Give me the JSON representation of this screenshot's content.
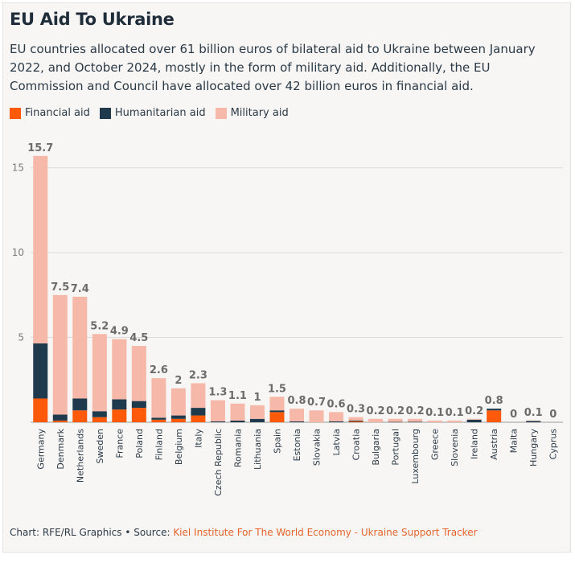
{
  "header": {
    "title": "EU Aid To Ukraine",
    "subtitle": "EU countries allocated over 61 billion euros of bilateral aid to Ukraine between January 2022, and October 2024, mostly in the form of military aid. Additionally, the EU Commission and Council have allocated over 42 billion euros in financial aid."
  },
  "legend": {
    "financial": "Financial aid",
    "humanitarian": "Humanitarian aid",
    "military": "Military aid"
  },
  "colors": {
    "financial": "#ff5a0a",
    "humanitarian": "#1e3a4c",
    "military": "#f6b8a8",
    "total_label": "#6b6b6b"
  },
  "footer": {
    "credit": "Chart: RFE/RL Graphics • Source: ",
    "source": "Kiel Institute For The World Economy - Ukraine Support Tracker"
  },
  "chart_data": {
    "type": "bar",
    "stacked": true,
    "ylim": [
      0,
      16.5
    ],
    "yticks": [
      5,
      10,
      15
    ],
    "grid": true,
    "legend_position": "top-left",
    "categories": [
      "Germany",
      "Denmark",
      "Netherlands",
      "Sweden",
      "France",
      "Poland",
      "Finland",
      "Belgium",
      "Italy",
      "Czech Republic",
      "Romania",
      "Lithuania",
      "Spain",
      "Estonia",
      "Slovakia",
      "Latvia",
      "Croatia",
      "Bulgaria",
      "Portugal",
      "Luxembourg",
      "Greece",
      "Slovenia",
      "Ireland",
      "Austria",
      "Malta",
      "Hungary",
      "Cyprus"
    ],
    "totals": [
      "15.7",
      "7.5",
      "7.4",
      "5.2",
      "4.9",
      "4.5",
      "2.6",
      "2",
      "2.3",
      "1.3",
      "1.1",
      "1",
      "1.5",
      "0.8",
      "0.7",
      "0.6",
      "0.3",
      "0.2",
      "0.2",
      "0.2",
      "0.1",
      "0.1",
      "0.2",
      "0.8",
      "0",
      "0.1",
      "0"
    ],
    "series": [
      {
        "name": "Financial aid",
        "key": "financial",
        "values": [
          1.4,
          0.1,
          0.7,
          0.3,
          0.75,
          0.85,
          0.15,
          0.2,
          0.4,
          0.0,
          0.0,
          0.0,
          0.6,
          0.0,
          0.0,
          0.0,
          0.05,
          0.0,
          0.0,
          0.0,
          0.0,
          0.0,
          0.0,
          0.7,
          0.0,
          0.0,
          0.0
        ]
      },
      {
        "name": "Humanitarian aid",
        "key": "humanitarian",
        "values": [
          3.25,
          0.35,
          0.7,
          0.35,
          0.6,
          0.4,
          0.12,
          0.2,
          0.45,
          0.05,
          0.1,
          0.2,
          0.1,
          0.05,
          0.0,
          0.05,
          0.05,
          0.0,
          0.02,
          0.03,
          0.0,
          0.0,
          0.15,
          0.1,
          0.0,
          0.08,
          0.0
        ]
      },
      {
        "name": "Military aid",
        "key": "military",
        "values": [
          11.05,
          7.05,
          6.0,
          4.55,
          3.55,
          3.25,
          2.33,
          1.6,
          1.45,
          1.25,
          1.0,
          0.8,
          0.8,
          0.75,
          0.7,
          0.55,
          0.2,
          0.2,
          0.18,
          0.17,
          0.1,
          0.1,
          0.05,
          0.0,
          0.0,
          0.02,
          0.0
        ]
      }
    ]
  }
}
